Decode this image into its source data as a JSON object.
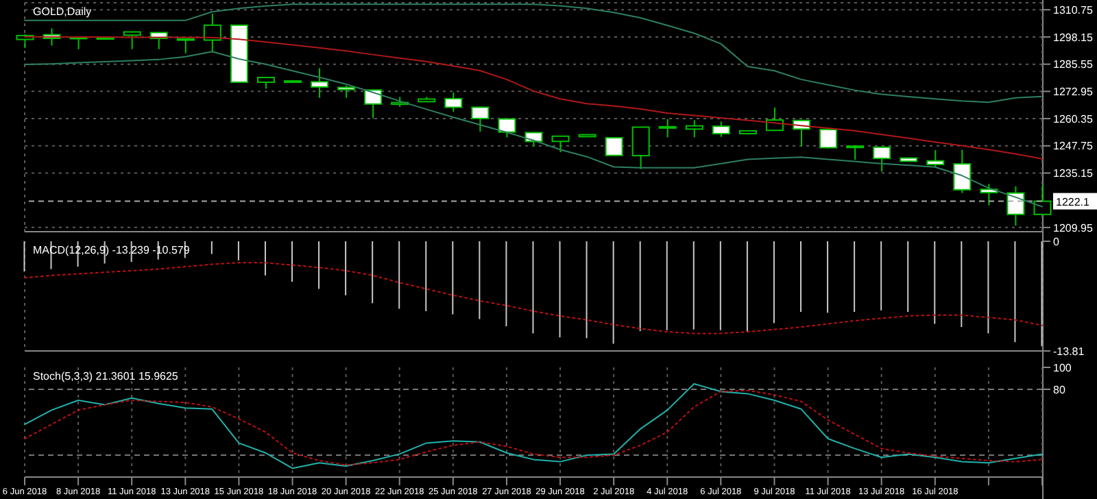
{
  "chart_data": [
    {
      "type": "candlestick",
      "title": "GOLD,Daily",
      "tick_labels": "y",
      "grid": true,
      "color": "#00c000",
      "categories": [
        null,
        null,
        null,
        null,
        null,
        null,
        null,
        null,
        null,
        null,
        null,
        null,
        null,
        null,
        null,
        null,
        null,
        null,
        null,
        null,
        null,
        null,
        null,
        null,
        null,
        null,
        null,
        null,
        null,
        null,
        null,
        null,
        null,
        null,
        null,
        null,
        null,
        null,
        null
      ],
      "ohlc": [
        [
          1297.0,
          1299.4,
          1293.0,
          1298.8
        ],
        [
          1299.2,
          1302.1,
          1294.2,
          1297.5
        ],
        [
          1298.0,
          1298.3,
          1292.5,
          1297.6
        ],
        [
          1297.8,
          1298.0,
          1297.6,
          1297.8
        ],
        [
          1299.0,
          1300.5,
          1292.5,
          1300.5
        ],
        [
          1300.2,
          1300.2,
          1292.5,
          1297.5
        ],
        [
          1297.3,
          1297.3,
          1290.6,
          1296.7
        ],
        [
          1296.7,
          1308.9,
          1291.0,
          1303.6
        ],
        [
          1303.6,
          1303.6,
          1277.2,
          1277.2
        ],
        [
          1277.2,
          1279.4,
          1274.2,
          1279.4
        ],
        [
          1277.8,
          1278.0,
          1277.0,
          1277.2
        ],
        [
          1277.4,
          1283.7,
          1270.0,
          1275.0
        ],
        [
          1274.8,
          1275.7,
          1270.0,
          1273.8
        ],
        [
          1273.6,
          1273.6,
          1260.5,
          1267.1
        ],
        [
          1267.0,
          1270.4,
          1265.8,
          1267.8
        ],
        [
          1268.2,
          1270.4,
          1268.0,
          1269.4
        ],
        [
          1269.6,
          1272.5,
          1263.5,
          1265.6
        ],
        [
          1265.6,
          1265.6,
          1254.3,
          1260.4
        ],
        [
          1260.2,
          1260.2,
          1251.7,
          1254.1
        ],
        [
          1253.9,
          1253.9,
          1247.6,
          1249.8
        ],
        [
          1249.8,
          1252.2,
          1244.8,
          1252.2
        ],
        [
          1252.0,
          1253.2,
          1251.8,
          1252.9
        ],
        [
          1251.5,
          1251.5,
          1243.3,
          1243.3
        ],
        [
          1243.2,
          1256.4,
          1237.0,
          1256.4
        ],
        [
          1256.0,
          1260.2,
          1251.7,
          1256.6
        ],
        [
          1255.5,
          1259.6,
          1251.7,
          1257.0
        ],
        [
          1256.8,
          1259.0,
          1251.9,
          1253.4
        ],
        [
          1253.4,
          1254.7,
          1253.0,
          1254.7
        ],
        [
          1254.9,
          1265.5,
          1254.6,
          1259.7
        ],
        [
          1259.5,
          1259.5,
          1247.6,
          1255.5
        ],
        [
          1255.3,
          1256.0,
          1246.5,
          1246.9
        ],
        [
          1247.2,
          1248.0,
          1241.3,
          1247.6
        ],
        [
          1247.1,
          1247.1,
          1235.8,
          1241.9
        ],
        [
          1242.1,
          1242.3,
          1240.4,
          1240.6
        ],
        [
          1240.8,
          1245.8,
          1237.8,
          1239.1
        ],
        [
          1239.4,
          1245.9,
          1225.9,
          1227.4
        ],
        [
          1227.6,
          1230.1,
          1220.2,
          1226.1
        ],
        [
          1225.9,
          1229.0,
          1210.8,
          1216.0
        ],
        [
          1216.0,
          1229.6,
          1216.0,
          1222.1
        ]
      ],
      "series": [
        {
          "type": "line",
          "color": "#b01818",
          "values": [
            1298.2,
            1298.2,
            1298.1,
            1298.1,
            1298.0,
            1298.0,
            1298.0,
            1297.9,
            1297.1,
            1295.8,
            1294.5,
            1293.1,
            1291.7,
            1290.0,
            1288.4,
            1286.8,
            1284.7,
            1282.6,
            1278.5,
            1273.1,
            1269.5,
            1267.3,
            1266.2,
            1264.8,
            1262.9,
            1261.8,
            1260.7,
            1259.6,
            1258.4,
            1257.1,
            1255.9,
            1254.7,
            1253.0,
            1251.3,
            1249.5,
            1247.8,
            1246.0,
            1244.0,
            1241.7
          ]
        },
        {
          "type": "line",
          "color": "#2e8060",
          "values": [
            1305.8,
            1305.8,
            1305.8,
            1305.8,
            1305.8,
            1305.8,
            1305.8,
            1309.8,
            1311.4,
            1312.5,
            1313.3,
            1313.3,
            1313.3,
            1313.3,
            1313.3,
            1313.3,
            1313.3,
            1313.3,
            1313.3,
            1313.3,
            1312.6,
            1311.4,
            1309.5,
            1307.0,
            1303.5,
            1299.9,
            1295.0,
            1284.5,
            1282.5,
            1278.5,
            1276.0,
            1273.5,
            1271.6,
            1270.5,
            1269.5,
            1268.5,
            1267.9,
            1270.0,
            1270.6
          ]
        },
        {
          "type": "line",
          "color": "#2e8060",
          "values": [
            1285.4,
            1285.7,
            1286.2,
            1286.7,
            1287.2,
            1287.7,
            1289.0,
            1291.4,
            1288.0,
            1285.5,
            1282.5,
            1279.5,
            1276.3,
            1272.5,
            1268.5,
            1264.7,
            1261.0,
            1257.5,
            1254.0,
            1250.3,
            1246.0,
            1242.7,
            1238.0,
            1237.6,
            1237.6,
            1237.6,
            1239.5,
            1241.5,
            1242.0,
            1242.5,
            1241.5,
            1240.5,
            1239.5,
            1238.8,
            1237.9,
            1234.0,
            1228.2,
            1224.0,
            1219.6
          ]
        }
      ],
      "ylim": [
        1208,
        1314
      ],
      "yticks": [
        1310.75,
        1298.15,
        1285.55,
        1272.95,
        1260.35,
        1247.75,
        1235.15,
        1209.95
      ],
      "ref_lines": [
        {
          "axis": "y",
          "value": 1222.1,
          "label": "1222.1",
          "color": "#aaaaaa",
          "line_style": "dashed"
        }
      ]
    },
    {
      "type": "bar",
      "title": "MACD(12,26,9) -13.239 -10.579",
      "tick_labels": "y",
      "grid": "x",
      "categories": [
        null,
        null,
        null,
        null,
        null,
        null,
        null,
        null,
        null,
        null,
        null,
        null,
        null,
        null,
        null,
        null,
        null,
        null,
        null,
        null,
        null,
        null,
        null,
        null,
        null,
        null,
        null,
        null,
        null,
        null,
        null,
        null,
        null,
        null,
        null,
        null,
        null,
        null,
        null
      ],
      "series": [
        {
          "type": "bar",
          "color": "#c8c8c8",
          "values": [
            -3.8,
            -3.5,
            -3.2,
            -2.8,
            -2.6,
            -2.3,
            -2.1,
            -1.6,
            -2.4,
            -4.3,
            -5.1,
            -6.0,
            -6.8,
            -7.8,
            -8.5,
            -8.8,
            -9.2,
            -9.8,
            -10.7,
            -11.6,
            -12.1,
            -12.2,
            -12.9,
            -11.3,
            -11.2,
            -11.1,
            -11.2,
            -11.4,
            -10.3,
            -8.9,
            -9.0,
            -8.9,
            -8.7,
            -8.9,
            -10.4,
            -10.8,
            -11.6,
            -12.7,
            -13.2
          ]
        },
        {
          "type": "line",
          "color": "#c01010",
          "line_style": "dotted",
          "values": [
            -4.6,
            -4.3,
            -4.1,
            -3.9,
            -3.7,
            -3.5,
            -3.2,
            -2.9,
            -2.7,
            -2.7,
            -3.0,
            -3.3,
            -3.7,
            -4.3,
            -5.2,
            -6.0,
            -6.8,
            -7.5,
            -8.1,
            -8.8,
            -9.4,
            -9.9,
            -10.5,
            -11.0,
            -11.4,
            -11.6,
            -11.6,
            -11.4,
            -11.1,
            -10.8,
            -10.4,
            -10.0,
            -9.7,
            -9.4,
            -9.3,
            -9.3,
            -9.6,
            -9.9,
            -10.6
          ]
        }
      ],
      "ylim": [
        -13.81,
        0
      ],
      "yticks": [
        0,
        -13.81
      ]
    },
    {
      "type": "line",
      "title": "Stoch(5,3,3) 21.3601 15.9625",
      "grid": "x",
      "categories": [
        "6 Jun 2018",
        null,
        "8 Jun 2018",
        null,
        "11 Jun 2018",
        null,
        "13 Jun 2018",
        null,
        "15 Jun 2018",
        null,
        "18 Jun 2018",
        null,
        "20 Jun 2018",
        null,
        "22 Jun 2018",
        null,
        "25 Jun 2018",
        null,
        "27 Jun 2018",
        null,
        "29 Jun 2018",
        null,
        "2 Jul 2018",
        null,
        "4 Jul 2018",
        null,
        "6 Jul 2018",
        null,
        "9 Jul 2018",
        null,
        "11 Jul 2018",
        null,
        "13 Jul 2018",
        null,
        "16 Jul 2018",
        null,
        null,
        null,
        null
      ],
      "series": [
        {
          "color": "#20b2aa",
          "values": [
            48,
            61,
            70,
            66,
            72,
            67,
            63,
            62,
            31,
            22,
            8,
            13,
            10,
            15,
            21,
            31,
            33,
            32,
            22,
            16,
            14,
            20,
            21,
            44,
            61,
            85,
            78,
            76,
            70,
            62,
            35,
            26,
            18,
            21,
            18,
            14,
            13,
            17,
            21
          ]
        },
        {
          "color": "#c01010",
          "line_style": "dotted",
          "values": [
            35,
            48,
            61,
            66,
            70,
            69,
            68,
            64,
            53,
            41,
            22,
            15,
            11,
            13,
            16,
            23,
            29,
            32,
            28,
            21,
            18,
            18,
            20,
            29,
            41,
            64,
            78,
            79,
            75,
            69,
            52,
            39,
            26,
            22,
            19,
            17,
            15,
            14,
            16
          ]
        }
      ],
      "ylim": [
        0,
        100
      ],
      "yticks": [
        100,
        80
      ],
      "ref_lines": [
        {
          "axis": "y",
          "value": 80,
          "color": "#777777",
          "line_style": "dashed"
        },
        {
          "axis": "y",
          "value": 20,
          "color": "#777777",
          "line_style": "dashed"
        }
      ]
    }
  ]
}
